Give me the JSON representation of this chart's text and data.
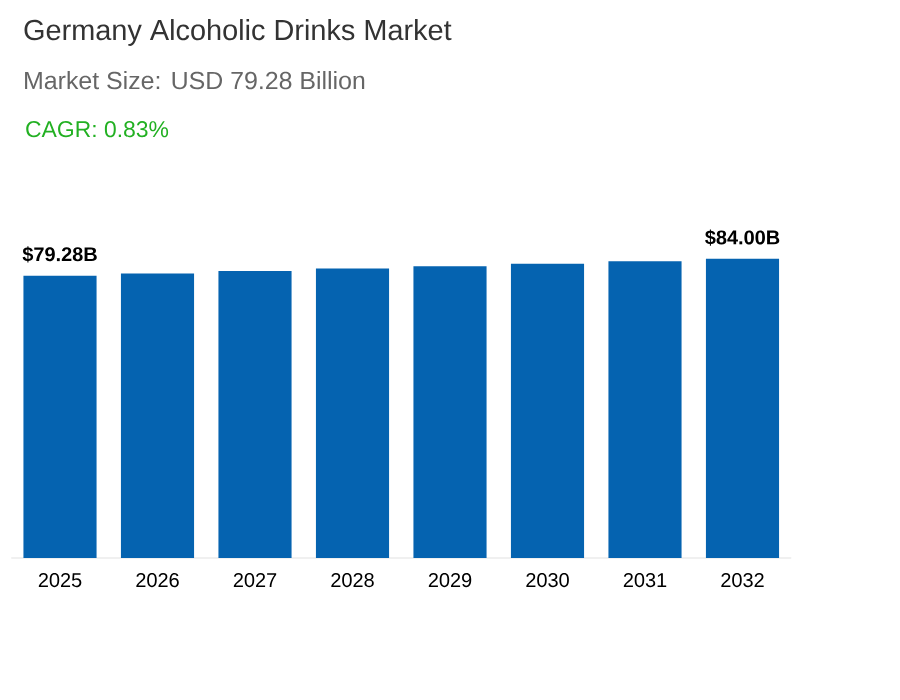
{
  "chart_data": {
    "type": "bar",
    "title": "Germany Alcoholic Drinks Market",
    "subtitle": "Market Size: USD 79.28 Billion",
    "annotations": [
      "CAGR: 0.83%"
    ],
    "categories": [
      "2025",
      "2026",
      "2027",
      "2028",
      "2029",
      "2030",
      "2031",
      "2032"
    ],
    "values": [
      79.28,
      79.9,
      80.6,
      81.3,
      81.9,
      82.6,
      83.3,
      84.0
    ],
    "value_labels": [
      "$79.28B",
      null,
      null,
      null,
      null,
      null,
      null,
      "$84.00B"
    ],
    "color": "#0563b0"
  }
}
